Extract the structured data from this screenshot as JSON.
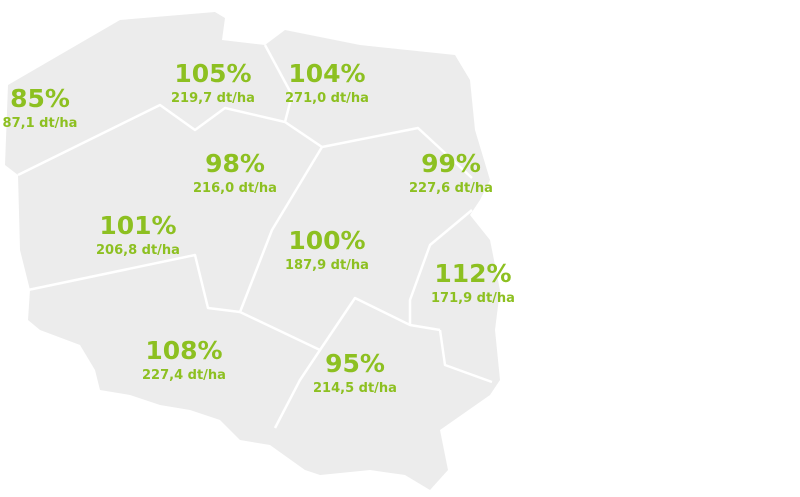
{
  "regions": [
    {
      "percent": "85%",
      "yield": "87,1 dt/ha"
    },
    {
      "percent": "105%",
      "yield": "219,7 dt/ha"
    },
    {
      "percent": "104%",
      "yield": "271,0 dt/ha"
    },
    {
      "percent": "98%",
      "yield": "216,0 dt/ha"
    },
    {
      "percent": "99%",
      "yield": "227,6 dt/ha"
    },
    {
      "percent": "101%",
      "yield": "206,8 dt/ha"
    },
    {
      "percent": "100%",
      "yield": "187,9 dt/ha"
    },
    {
      "percent": "112%",
      "yield": "171,9 dt/ha"
    },
    {
      "percent": "108%",
      "yield": "227,4 dt/ha"
    },
    {
      "percent": "95%",
      "yield": "214,5 dt/ha"
    }
  ]
}
